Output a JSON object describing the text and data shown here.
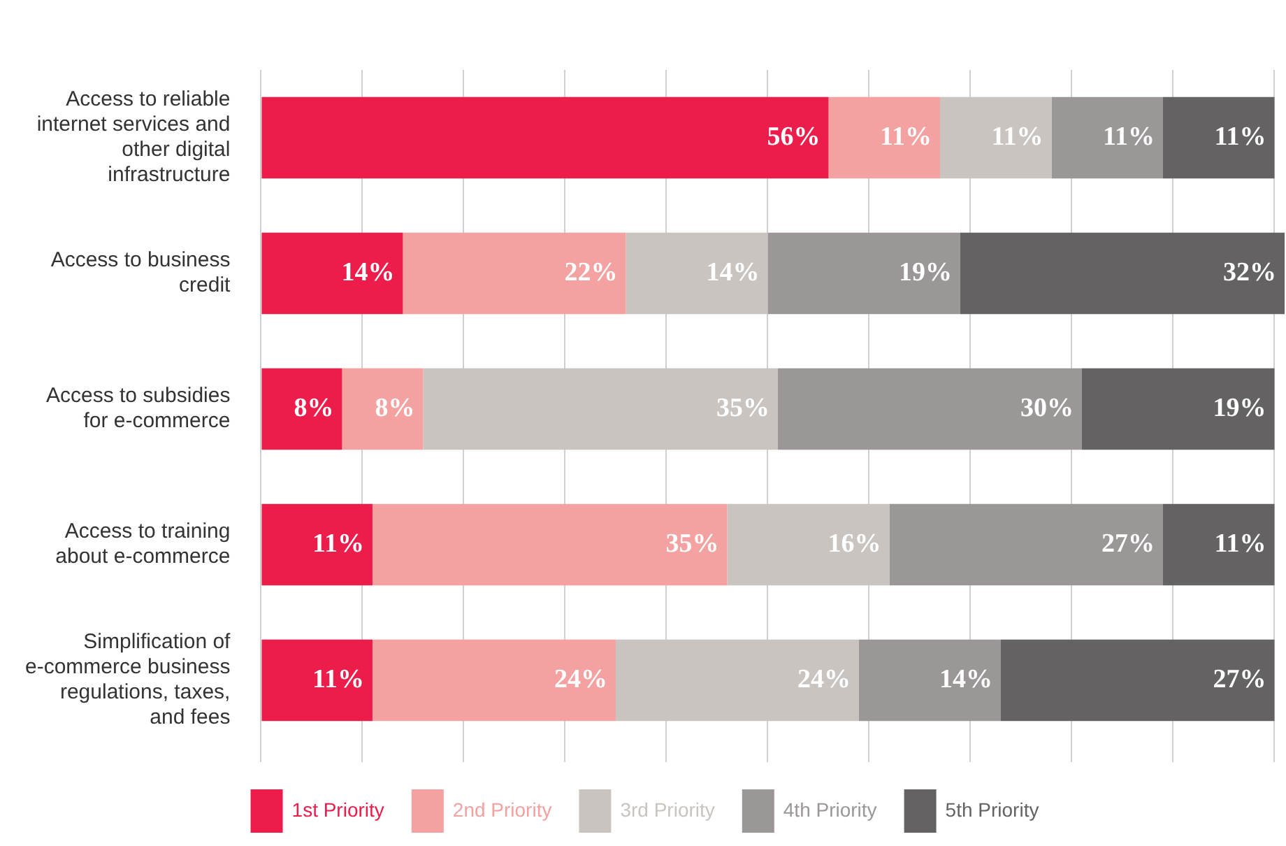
{
  "chart_data": {
    "type": "bar",
    "orientation": "horizontal",
    "stacked": true,
    "categories": [
      "Access to reliable internet services and other digital infrastructure",
      "Access to business credit",
      "Access to subsidies for e-commerce",
      "Access to training about e-commerce",
      "Simplification of e-commerce business regulations, taxes, and fees"
    ],
    "series": [
      {
        "name": "1st Priority",
        "color": "#ec1c4b",
        "values": [
          56,
          14,
          8,
          11,
          11
        ],
        "value_labels": [
          "56%",
          "14%",
          "8%",
          "11%",
          "11%"
        ]
      },
      {
        "name": "2nd Priority",
        "color": "#f4a1a1",
        "values": [
          11,
          22,
          8,
          35,
          24
        ],
        "value_labels": [
          "11%",
          "22%",
          "8%",
          "35%",
          "24%"
        ]
      },
      {
        "name": "3rd Priority",
        "color": "#c9c4c0",
        "values": [
          11,
          14,
          35,
          16,
          24
        ],
        "value_labels": [
          "11%",
          "14%",
          "35%",
          "16%",
          "24%"
        ]
      },
      {
        "name": "4th Priority",
        "color": "#9b9797",
        "values": [
          11,
          19,
          30,
          27,
          14
        ],
        "value_labels": [
          "11%",
          "19%",
          "30%",
          "27%",
          "14%"
        ]
      },
      {
        "name": "5th Priority",
        "color": "#646262",
        "values": [
          11,
          32,
          19,
          11,
          27
        ],
        "value_labels": [
          "11%",
          "32%",
          "19%",
          "11%",
          "27%"
        ]
      }
    ],
    "xlim": [
      0,
      101
    ],
    "xticks": [
      {
        "value": 0,
        "label": null
      },
      {
        "value": 10,
        "label": null
      },
      {
        "value": 20,
        "label": null
      },
      {
        "value": 30,
        "label": null
      },
      {
        "value": 40,
        "label": null
      },
      {
        "value": 50,
        "label": null
      },
      {
        "value": 60,
        "label": null
      },
      {
        "value": 70,
        "label": null
      },
      {
        "value": 80,
        "label": null
      },
      {
        "value": 90,
        "label": null
      },
      {
        "value": 100,
        "label": null
      }
    ],
    "tick_labels": "y",
    "grid": "x",
    "legend": "bottom"
  }
}
